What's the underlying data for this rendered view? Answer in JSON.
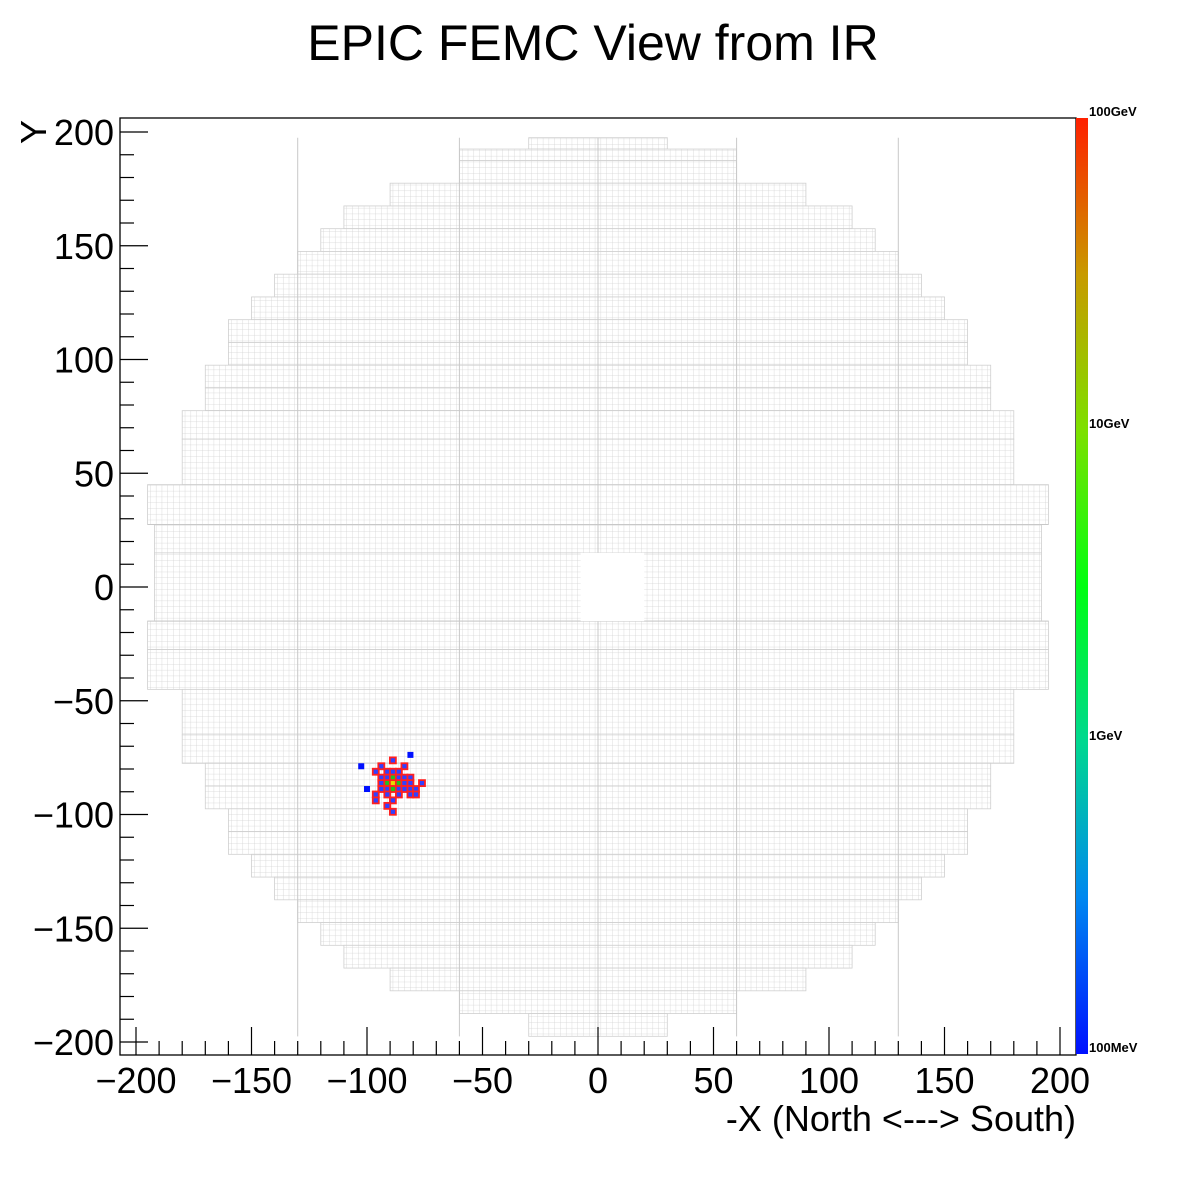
{
  "chart_data": {
    "type": "heatmap",
    "title": "EPIC FEMC View from IR",
    "xlabel": "-X (North <---> South)",
    "ylabel": "Y",
    "xlim": [
      -205,
      205
    ],
    "ylim": [
      -205,
      205
    ],
    "x_ticks": [
      -200,
      -150,
      -100,
      -50,
      0,
      50,
      100,
      150,
      200
    ],
    "x_tick_labels": [
      "−200",
      "−150",
      "−100",
      "−50",
      "0",
      "50",
      "100",
      "150",
      "200"
    ],
    "y_ticks": [
      200,
      150,
      100,
      50,
      0,
      -50,
      -100,
      -150,
      -200
    ],
    "y_tick_labels": [
      "200",
      "150",
      "100",
      "50",
      "0",
      "−50",
      "−100",
      "−150",
      "−200"
    ],
    "colorbar": {
      "scale": "log",
      "range_GeV": [
        0.1,
        100
      ],
      "tick_values_GeV": [
        100,
        10,
        1,
        0.1
      ],
      "tick_labels": [
        "100GeV",
        "10GeV",
        "1GeV",
        "100MeV"
      ],
      "gradient_colors": [
        "#ff2000",
        "#c89a00",
        "#7ee000",
        "#00ff10",
        "#00d890",
        "#0088f0",
        "#0010ff"
      ]
    },
    "detector_outline": {
      "cell_size": 2.5,
      "color": "#d4d4d4",
      "beam_hole": {
        "x": [
          -7.5,
          20
        ],
        "y": [
          -15,
          15
        ]
      },
      "rows": [
        {
          "y": [
            197.5,
            192.5
          ],
          "x": [
            -30,
            30
          ]
        },
        {
          "y": [
            192.5,
            187.5
          ],
          "x": [
            -60,
            60
          ]
        },
        {
          "y": [
            187.5,
            177.5
          ],
          "x": [
            -60,
            60
          ]
        },
        {
          "y": [
            177.5,
            167.5
          ],
          "x": [
            -90,
            90
          ]
        },
        {
          "y": [
            167.5,
            157.5
          ],
          "x": [
            -110,
            110
          ]
        },
        {
          "y": [
            157.5,
            147.5
          ],
          "x": [
            -120,
            120
          ]
        },
        {
          "y": [
            147.5,
            137.5
          ],
          "x": [
            -130,
            130
          ]
        },
        {
          "y": [
            137.5,
            127.5
          ],
          "x": [
            -140,
            140
          ]
        },
        {
          "y": [
            127.5,
            117.5
          ],
          "x": [
            -150,
            150
          ]
        },
        {
          "y": [
            117.5,
            107.5
          ],
          "x": [
            -160,
            160
          ]
        },
        {
          "y": [
            107.5,
            97.5
          ],
          "x": [
            -160,
            160
          ]
        },
        {
          "y": [
            97.5,
            87.5
          ],
          "x": [
            -170,
            170
          ]
        },
        {
          "y": [
            87.5,
            77.5
          ],
          "x": [
            -170,
            170
          ]
        },
        {
          "y": [
            77.5,
            65
          ],
          "x": [
            -180,
            180
          ]
        },
        {
          "y": [
            65,
            45
          ],
          "x": [
            -180,
            180
          ]
        },
        {
          "y": [
            45,
            27.5
          ],
          "x": [
            -195,
            195
          ]
        },
        {
          "y": [
            27.5,
            15
          ],
          "x": [
            -192,
            192
          ]
        },
        {
          "y": [
            15,
            -15
          ],
          "x": [
            -192,
            192
          ]
        },
        {
          "y": [
            -15,
            -27.5
          ],
          "x": [
            -195,
            195
          ]
        },
        {
          "y": [
            -27.5,
            -45
          ],
          "x": [
            -195,
            195
          ]
        },
        {
          "y": [
            -45,
            -65
          ],
          "x": [
            -180,
            180
          ]
        },
        {
          "y": [
            -65,
            -77.5
          ],
          "x": [
            -180,
            180
          ]
        },
        {
          "y": [
            -77.5,
            -87.5
          ],
          "x": [
            -170,
            170
          ]
        },
        {
          "y": [
            -87.5,
            -97.5
          ],
          "x": [
            -170,
            170
          ]
        },
        {
          "y": [
            -97.5,
            -107.5
          ],
          "x": [
            -160,
            160
          ]
        },
        {
          "y": [
            -107.5,
            -117.5
          ],
          "x": [
            -160,
            160
          ]
        },
        {
          "y": [
            -117.5,
            -127.5
          ],
          "x": [
            -150,
            150
          ]
        },
        {
          "y": [
            -127.5,
            -137.5
          ],
          "x": [
            -140,
            140
          ]
        },
        {
          "y": [
            -137.5,
            -147.5
          ],
          "x": [
            -130,
            130
          ]
        },
        {
          "y": [
            -147.5,
            -157.5
          ],
          "x": [
            -120,
            120
          ]
        },
        {
          "y": [
            -157.5,
            -167.5
          ],
          "x": [
            -110,
            110
          ]
        },
        {
          "y": [
            -167.5,
            -177.5
          ],
          "x": [
            -90,
            90
          ]
        },
        {
          "y": [
            -177.5,
            -187.5
          ],
          "x": [
            -60,
            60
          ]
        },
        {
          "y": [
            -187.5,
            -197.5
          ],
          "x": [
            -30,
            30
          ]
        }
      ]
    },
    "hits": [
      {
        "x": -81.2,
        "y": -73.8,
        "fill": "#0010ff",
        "edge": "none"
      },
      {
        "x": -102.5,
        "y": -78.8,
        "fill": "#0010ff",
        "edge": "none"
      },
      {
        "x": -100.0,
        "y": -88.8,
        "fill": "#0010ff",
        "edge": "none"
      },
      {
        "x": -88.8,
        "y": -76.2,
        "fill": "#3040ff",
        "edge": "#ff2020"
      },
      {
        "x": -93.8,
        "y": -78.8,
        "fill": "#3040ff",
        "edge": "#ff2020"
      },
      {
        "x": -83.8,
        "y": -78.8,
        "fill": "#3040ff",
        "edge": "#ff2020"
      },
      {
        "x": -96.2,
        "y": -81.2,
        "fill": "#3040ff",
        "edge": "#ff2020"
      },
      {
        "x": -91.2,
        "y": -81.2,
        "fill": "#3040ff",
        "edge": "#ff2020"
      },
      {
        "x": -88.8,
        "y": -81.2,
        "fill": "#3040ff",
        "edge": "#ff2020"
      },
      {
        "x": -86.2,
        "y": -81.2,
        "fill": "#3040ff",
        "edge": "#ff2020"
      },
      {
        "x": -93.8,
        "y": -83.8,
        "fill": "#3040ff",
        "edge": "#ff2020"
      },
      {
        "x": -91.2,
        "y": -83.8,
        "fill": "#3040ff",
        "edge": "#ff2020"
      },
      {
        "x": -88.8,
        "y": -83.8,
        "fill": "#20c020",
        "edge": "#ff2020"
      },
      {
        "x": -86.2,
        "y": -83.8,
        "fill": "#3040ff",
        "edge": "#ff2020"
      },
      {
        "x": -83.8,
        "y": -83.8,
        "fill": "#3040ff",
        "edge": "#ff2020"
      },
      {
        "x": -81.2,
        "y": -83.8,
        "fill": "#3040ff",
        "edge": "#ff2020"
      },
      {
        "x": -93.8,
        "y": -86.2,
        "fill": "#3040ff",
        "edge": "#ff2020"
      },
      {
        "x": -91.2,
        "y": -86.2,
        "fill": "#20c020",
        "edge": "#ff2020"
      },
      {
        "x": -88.8,
        "y": -86.2,
        "fill": "#e6dc00",
        "edge": "#ff2020"
      },
      {
        "x": -86.2,
        "y": -86.2,
        "fill": "#20c020",
        "edge": "#ff2020"
      },
      {
        "x": -83.8,
        "y": -86.2,
        "fill": "#3040ff",
        "edge": "#ff2020"
      },
      {
        "x": -81.2,
        "y": -86.2,
        "fill": "#3040ff",
        "edge": "#ff2020"
      },
      {
        "x": -76.2,
        "y": -86.2,
        "fill": "#3040ff",
        "edge": "#ff2020"
      },
      {
        "x": -93.8,
        "y": -88.8,
        "fill": "#3040ff",
        "edge": "#ff2020"
      },
      {
        "x": -91.2,
        "y": -88.8,
        "fill": "#3040ff",
        "edge": "#ff2020"
      },
      {
        "x": -88.8,
        "y": -88.8,
        "fill": "#20c020",
        "edge": "#ff2020"
      },
      {
        "x": -86.2,
        "y": -88.8,
        "fill": "#3040ff",
        "edge": "#ff2020"
      },
      {
        "x": -83.8,
        "y": -88.8,
        "fill": "#3040ff",
        "edge": "#ff2020"
      },
      {
        "x": -81.2,
        "y": -88.8,
        "fill": "#3040ff",
        "edge": "#ff2020"
      },
      {
        "x": -78.8,
        "y": -88.8,
        "fill": "#3040ff",
        "edge": "#ff2020"
      },
      {
        "x": -96.2,
        "y": -91.2,
        "fill": "#3040ff",
        "edge": "#ff2020"
      },
      {
        "x": -91.2,
        "y": -91.2,
        "fill": "#3040ff",
        "edge": "#ff2020"
      },
      {
        "x": -86.2,
        "y": -91.2,
        "fill": "#3040ff",
        "edge": "#ff2020"
      },
      {
        "x": -81.2,
        "y": -91.2,
        "fill": "#3040ff",
        "edge": "#ff2020"
      },
      {
        "x": -78.8,
        "y": -91.2,
        "fill": "#3040ff",
        "edge": "#ff2020"
      },
      {
        "x": -96.2,
        "y": -93.8,
        "fill": "#3040ff",
        "edge": "#ff2020"
      },
      {
        "x": -88.8,
        "y": -93.8,
        "fill": "#3040ff",
        "edge": "#ff2020"
      },
      {
        "x": -91.2,
        "y": -96.2,
        "fill": "#3040ff",
        "edge": "#ff2020"
      },
      {
        "x": -88.8,
        "y": -98.8,
        "fill": "#3040ff",
        "edge": "#ff2020"
      }
    ]
  }
}
